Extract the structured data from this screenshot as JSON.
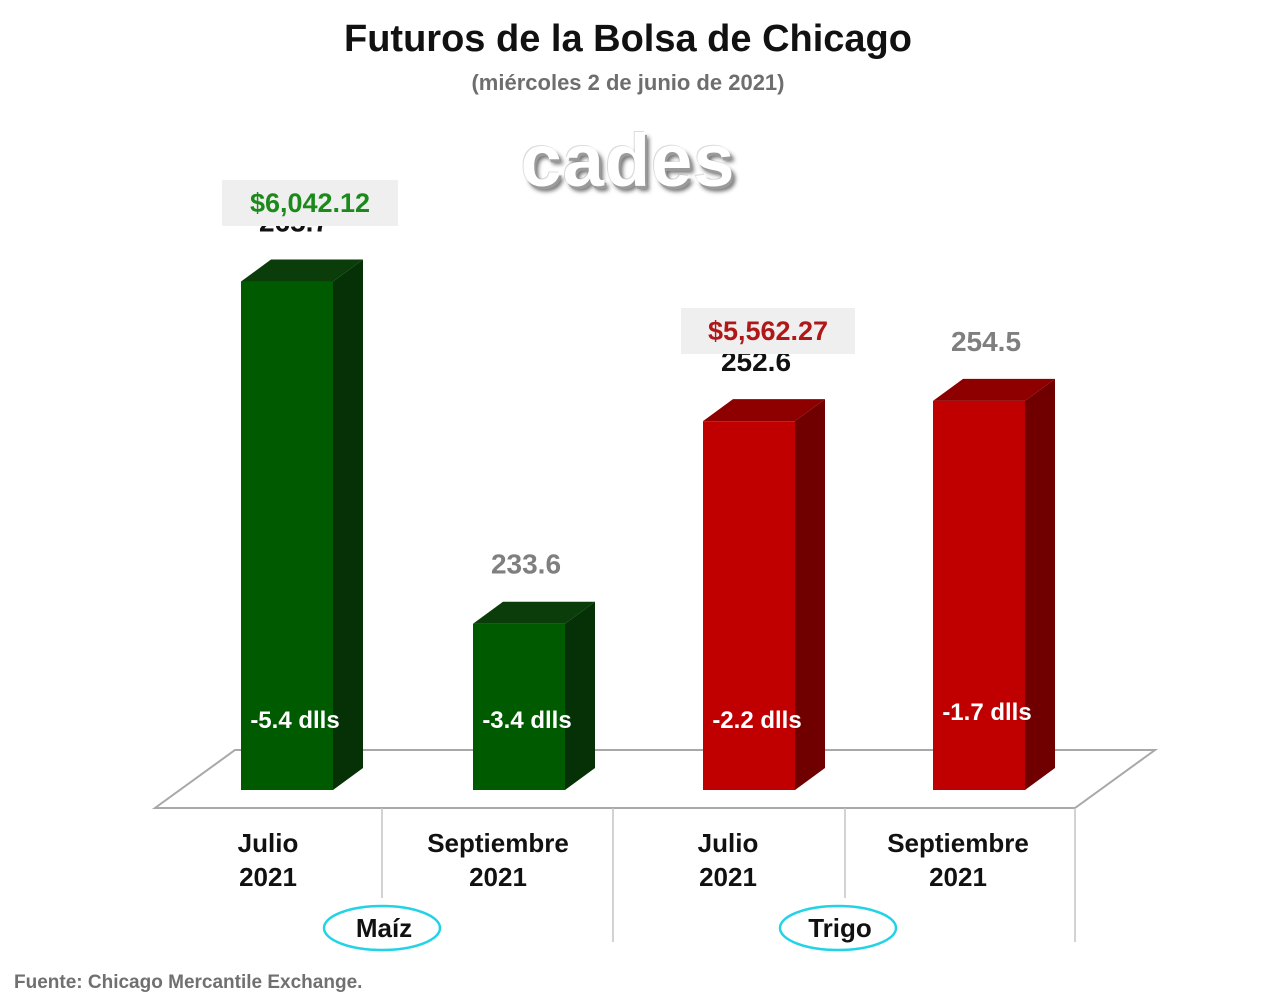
{
  "header": {
    "title": "Futuros de la Bolsa de Chicago",
    "subtitle": "(miércoles 2 de junio de 2021)",
    "logo_text": "cades"
  },
  "footer": {
    "source": "Fuente: Chicago Mercantile Exchange."
  },
  "chart_data": {
    "type": "bar",
    "title": "Futuros de la Bolsa de Chicago",
    "subtitle": "(miércoles 2 de junio de 2021)",
    "groups": [
      {
        "name": "Maíz",
        "price_label": "$6,042.12",
        "price_color": "#1b8a1b",
        "bar_color": "#005a00",
        "bar_top_color": "#0a3d0a",
        "bar_side_color": "#063006",
        "bars": [
          {
            "category": "Julio",
            "year": "2021",
            "value": 265.7,
            "value_label": "265.7",
            "change_label": "-5.4 dlls",
            "label_color": "#111111"
          },
          {
            "category": "Septiembre",
            "year": "2021",
            "value": 233.6,
            "value_label": "233.6",
            "change_label": "-3.4 dlls",
            "label_color": "#7f7f7f"
          }
        ]
      },
      {
        "name": "Trigo",
        "price_label": "$5,562.27",
        "price_color": "#b01818",
        "bar_color": "#c00000",
        "bar_top_color": "#8e0000",
        "bar_side_color": "#700000",
        "bars": [
          {
            "category": "Julio",
            "year": "2021",
            "value": 252.6,
            "value_label": "252.6",
            "change_label": "-2.2 dlls",
            "label_color": "#111111"
          },
          {
            "category": "Septiembre",
            "year": "2021",
            "value": 254.5,
            "value_label": "254.5",
            "change_label": "-1.7 dlls",
            "label_color": "#7f7f7f"
          }
        ]
      }
    ],
    "grid": false,
    "legend": "none"
  }
}
